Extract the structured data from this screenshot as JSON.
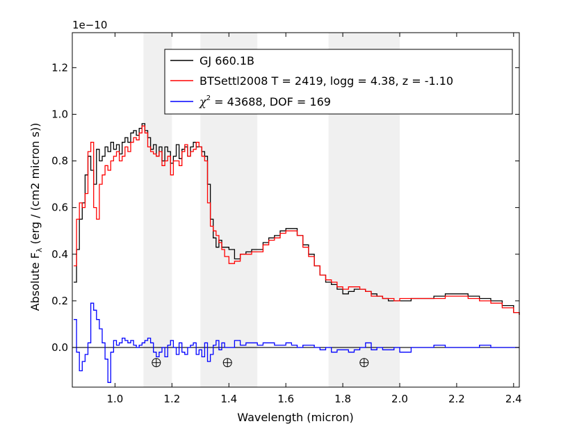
{
  "chart_data": {
    "type": "line",
    "xlabel": "Wavelength (micron)",
    "ylabel_main": "Absolute F",
    "ylabel_sub": "λ",
    "ylabel_rest": " (erg / (cm2 micron s))",
    "offset_text": "1e−10",
    "xlim": [
      0.85,
      2.42
    ],
    "ylim": [
      -0.17,
      1.35
    ],
    "xticks": [
      1.0,
      1.2,
      1.4,
      1.6,
      1.8,
      2.0,
      2.2,
      2.4
    ],
    "xtick_labels": [
      "1.0",
      "1.2",
      "1.4",
      "1.6",
      "1.8",
      "2.0",
      "2.2",
      "2.4"
    ],
    "yticks": [
      0.0,
      0.2,
      0.4,
      0.6,
      0.8,
      1.0,
      1.2
    ],
    "ytick_labels": [
      "0.0",
      "0.2",
      "0.4",
      "0.6",
      "0.8",
      "1.0",
      "1.2"
    ],
    "shaded_bands": [
      [
        1.1,
        1.2
      ],
      [
        1.3,
        1.5
      ],
      [
        1.75,
        2.0
      ]
    ],
    "zero_line": 0.0,
    "telluric_markers": [
      {
        "x": 1.145,
        "y": -0.065
      },
      {
        "x": 1.395,
        "y": -0.065
      },
      {
        "x": 1.875,
        "y": -0.065
      }
    ],
    "legend": {
      "location": "upper-right",
      "entries": [
        {
          "label": "GJ 660.1B",
          "color": "#000000"
        },
        {
          "label": "BTSettl2008 T = 2419, logg =  4.38, z = -1.10",
          "color": "#ff0000"
        },
        {
          "label_symbol": "χ",
          "label_sup": "2",
          "label_rest": " = 43688, DOF = 169",
          "color": "#0000ff"
        }
      ]
    },
    "series": [
      {
        "name": "GJ 660.1B",
        "color": "#000000",
        "x": [
          0.855,
          0.865,
          0.875,
          0.885,
          0.895,
          0.905,
          0.915,
          0.925,
          0.935,
          0.945,
          0.955,
          0.965,
          0.975,
          0.985,
          0.995,
          1.005,
          1.015,
          1.025,
          1.035,
          1.045,
          1.055,
          1.065,
          1.075,
          1.085,
          1.095,
          1.105,
          1.115,
          1.125,
          1.135,
          1.145,
          1.155,
          1.165,
          1.175,
          1.185,
          1.195,
          1.205,
          1.215,
          1.225,
          1.235,
          1.245,
          1.255,
          1.265,
          1.275,
          1.285,
          1.295,
          1.305,
          1.315,
          1.325,
          1.335,
          1.345,
          1.355,
          1.365,
          1.375,
          1.385,
          1.4,
          1.42,
          1.44,
          1.46,
          1.48,
          1.5,
          1.52,
          1.54,
          1.56,
          1.58,
          1.6,
          1.62,
          1.64,
          1.66,
          1.68,
          1.7,
          1.72,
          1.74,
          1.76,
          1.78,
          1.8,
          1.82,
          1.84,
          1.86,
          1.88,
          1.9,
          1.92,
          1.94,
          1.96,
          1.98,
          2.0,
          2.04,
          2.08,
          2.12,
          2.16,
          2.2,
          2.24,
          2.28,
          2.32,
          2.36,
          2.4,
          2.42
        ],
        "y": [
          0.28,
          0.42,
          0.55,
          0.62,
          0.74,
          0.82,
          0.76,
          0.7,
          0.85,
          0.8,
          0.82,
          0.86,
          0.84,
          0.88,
          0.85,
          0.87,
          0.83,
          0.88,
          0.9,
          0.88,
          0.92,
          0.93,
          0.91,
          0.94,
          0.96,
          0.93,
          0.9,
          0.85,
          0.87,
          0.82,
          0.86,
          0.8,
          0.86,
          0.84,
          0.79,
          0.82,
          0.87,
          0.81,
          0.85,
          0.86,
          0.82,
          0.86,
          0.88,
          0.86,
          0.86,
          0.84,
          0.82,
          0.7,
          0.55,
          0.47,
          0.43,
          0.46,
          0.43,
          0.43,
          0.42,
          0.38,
          0.4,
          0.41,
          0.42,
          0.42,
          0.45,
          0.47,
          0.48,
          0.5,
          0.51,
          0.51,
          0.48,
          0.44,
          0.4,
          0.35,
          0.31,
          0.28,
          0.27,
          0.25,
          0.23,
          0.24,
          0.25,
          0.25,
          0.24,
          0.23,
          0.22,
          0.21,
          0.2,
          0.2,
          0.2,
          0.21,
          0.21,
          0.22,
          0.23,
          0.23,
          0.22,
          0.21,
          0.2,
          0.18,
          0.15,
          0.14
        ]
      },
      {
        "name": "BTSettl2008 T = 2419, logg =  4.38, z = -1.10",
        "color": "#ff0000",
        "x": [
          0.855,
          0.865,
          0.875,
          0.885,
          0.895,
          0.905,
          0.915,
          0.925,
          0.935,
          0.945,
          0.955,
          0.965,
          0.975,
          0.985,
          0.995,
          1.005,
          1.015,
          1.025,
          1.035,
          1.045,
          1.055,
          1.065,
          1.075,
          1.085,
          1.095,
          1.105,
          1.115,
          1.125,
          1.135,
          1.145,
          1.155,
          1.165,
          1.175,
          1.185,
          1.195,
          1.205,
          1.215,
          1.225,
          1.235,
          1.245,
          1.255,
          1.265,
          1.275,
          1.285,
          1.295,
          1.305,
          1.315,
          1.325,
          1.335,
          1.345,
          1.355,
          1.365,
          1.375,
          1.385,
          1.4,
          1.42,
          1.44,
          1.46,
          1.48,
          1.5,
          1.52,
          1.54,
          1.56,
          1.58,
          1.6,
          1.62,
          1.64,
          1.66,
          1.68,
          1.7,
          1.72,
          1.74,
          1.76,
          1.78,
          1.8,
          1.82,
          1.84,
          1.86,
          1.88,
          1.9,
          1.92,
          1.94,
          1.96,
          1.98,
          2.0,
          2.04,
          2.08,
          2.12,
          2.16,
          2.2,
          2.24,
          2.28,
          2.32,
          2.36,
          2.4,
          2.42
        ],
        "y": [
          0.35,
          0.55,
          0.62,
          0.6,
          0.66,
          0.84,
          0.88,
          0.6,
          0.55,
          0.7,
          0.74,
          0.78,
          0.76,
          0.8,
          0.82,
          0.84,
          0.8,
          0.82,
          0.86,
          0.84,
          0.88,
          0.9,
          0.89,
          0.92,
          0.95,
          0.92,
          0.86,
          0.84,
          0.83,
          0.82,
          0.84,
          0.78,
          0.8,
          0.82,
          0.74,
          0.8,
          0.8,
          0.78,
          0.84,
          0.87,
          0.82,
          0.84,
          0.85,
          0.88,
          0.86,
          0.82,
          0.8,
          0.62,
          0.52,
          0.5,
          0.48,
          0.45,
          0.42,
          0.39,
          0.36,
          0.37,
          0.4,
          0.4,
          0.41,
          0.41,
          0.44,
          0.46,
          0.47,
          0.49,
          0.5,
          0.5,
          0.48,
          0.43,
          0.39,
          0.35,
          0.31,
          0.29,
          0.28,
          0.26,
          0.25,
          0.26,
          0.26,
          0.25,
          0.24,
          0.22,
          0.22,
          0.21,
          0.21,
          0.2,
          0.21,
          0.21,
          0.21,
          0.21,
          0.22,
          0.22,
          0.21,
          0.2,
          0.19,
          0.17,
          0.15,
          0.14
        ]
      },
      {
        "name": "chi2",
        "color": "#0000ff",
        "x": [
          0.855,
          0.865,
          0.875,
          0.885,
          0.895,
          0.905,
          0.915,
          0.925,
          0.935,
          0.945,
          0.955,
          0.965,
          0.975,
          0.985,
          0.995,
          1.005,
          1.015,
          1.025,
          1.035,
          1.045,
          1.055,
          1.065,
          1.075,
          1.085,
          1.095,
          1.105,
          1.115,
          1.125,
          1.135,
          1.145,
          1.155,
          1.165,
          1.175,
          1.185,
          1.195,
          1.205,
          1.215,
          1.225,
          1.235,
          1.245,
          1.255,
          1.265,
          1.275,
          1.285,
          1.295,
          1.305,
          1.315,
          1.325,
          1.335,
          1.345,
          1.355,
          1.365,
          1.375,
          1.385,
          1.4,
          1.42,
          1.44,
          1.46,
          1.48,
          1.5,
          1.52,
          1.54,
          1.56,
          1.58,
          1.6,
          1.62,
          1.64,
          1.66,
          1.68,
          1.7,
          1.72,
          1.74,
          1.76,
          1.78,
          1.8,
          1.82,
          1.84,
          1.86,
          1.88,
          1.9,
          1.92,
          1.94,
          1.96,
          1.98,
          2.0,
          2.04,
          2.08,
          2.12,
          2.16,
          2.2,
          2.24,
          2.28,
          2.32,
          2.36,
          2.4,
          2.42
        ],
        "y": [
          0.12,
          -0.02,
          -0.1,
          -0.06,
          -0.03,
          0.02,
          0.19,
          0.16,
          0.12,
          0.08,
          0.02,
          -0.05,
          -0.15,
          -0.02,
          0.03,
          0.01,
          0.02,
          0.04,
          0.03,
          0.02,
          0.03,
          0.01,
          0.0,
          0.01,
          0.02,
          0.03,
          0.04,
          0.02,
          -0.02,
          -0.04,
          -0.02,
          0.0,
          -0.04,
          0.01,
          0.03,
          0.0,
          -0.03,
          0.02,
          -0.02,
          -0.03,
          0.0,
          0.01,
          0.02,
          -0.03,
          -0.01,
          -0.04,
          0.02,
          -0.06,
          -0.03,
          0.01,
          0.03,
          -0.01,
          0.02,
          0.0,
          0.0,
          0.03,
          0.01,
          0.02,
          0.02,
          0.01,
          0.02,
          0.02,
          0.01,
          0.01,
          0.02,
          0.01,
          0.0,
          0.01,
          0.01,
          0.0,
          -0.01,
          0.0,
          -0.02,
          -0.01,
          -0.01,
          -0.02,
          -0.01,
          0.0,
          0.02,
          -0.01,
          0.0,
          -0.01,
          -0.01,
          0.0,
          -0.02,
          0.0,
          0.0,
          0.01,
          0.0,
          0.0,
          0.0,
          0.01,
          0.0,
          0.0,
          0.0,
          0.0
        ]
      }
    ]
  }
}
